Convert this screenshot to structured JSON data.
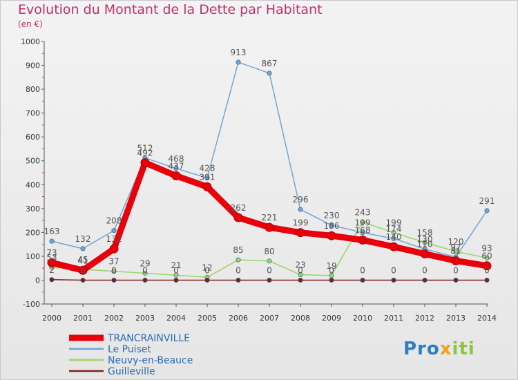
{
  "chart_data": {
    "type": "line",
    "title": "Evolution du Montant de la Dette par Habitant",
    "unit": "(en €)",
    "x": [
      "2000",
      "2001",
      "2002",
      "2003",
      "2004",
      "2005",
      "2006",
      "2007",
      "2008",
      "2009",
      "2010",
      "2011",
      "2012",
      "2013",
      "2014"
    ],
    "ylim": [
      -100,
      1000
    ],
    "yticks": [
      -100,
      0,
      100,
      200,
      300,
      400,
      500,
      600,
      700,
      800,
      900,
      1000
    ],
    "grid": false,
    "legend_position": "bottom-left",
    "series": [
      {
        "name": "TRANCRAINVILLE",
        "color": "#e8000b",
        "values": [
          73,
          41,
          131,
          492,
          437,
          391,
          262,
          221,
          199,
          186,
          168,
          140,
          110,
          81,
          60
        ]
      },
      {
        "name": "Le Puiset",
        "color": "#6fa6d6",
        "values": [
          163,
          132,
          208,
          512,
          468,
          428,
          913,
          867,
          296,
          230,
          199,
          174,
          130,
          97,
          291
        ]
      },
      {
        "name": "Neuvy-en-Beauce",
        "color": "#99d468",
        "values": [
          53,
          45,
          37,
          29,
          21,
          12,
          85,
          80,
          23,
          19,
          243,
          199,
          158,
          120,
          93
        ]
      },
      {
        "name": "Guilleville",
        "color": "#7a2020",
        "values": [
          2,
          0,
          0,
          0,
          0,
          0,
          0,
          0,
          0,
          0,
          0,
          0,
          0,
          0,
          0
        ]
      }
    ]
  },
  "brand": {
    "p1": "Pro",
    "p2": "x",
    "p3": "iti"
  }
}
